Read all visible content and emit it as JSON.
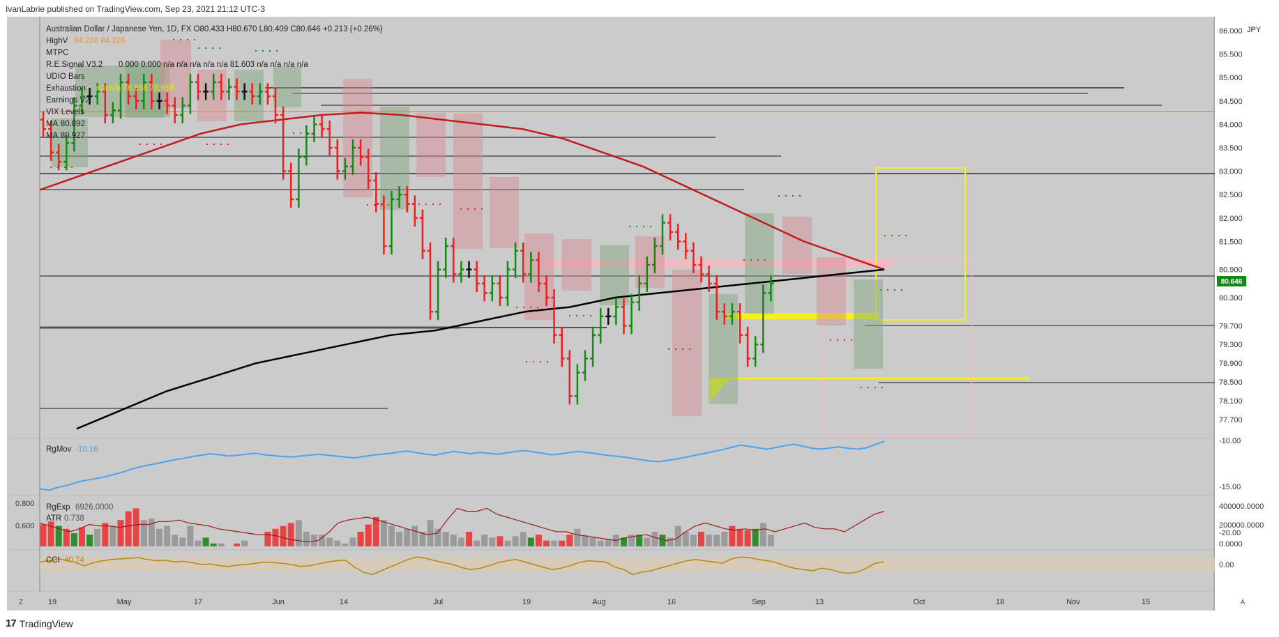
{
  "header": {
    "publisher": "IvanLabrie published on TradingView.com, Sep 23, 2021 21:12 UTC-3"
  },
  "footer": {
    "brand": "TradingView"
  },
  "legend": {
    "symbol": "Australian Dollar / Japanese Yen, 1D, FX",
    "ohlc": "O80.433  H80.670  L80.409  C80.646  +0.213 (+0.26%)",
    "lines": [
      {
        "name": "HighV",
        "values": "84.226  84.226"
      },
      {
        "name": "MTPC",
        "values": ""
      },
      {
        "name": "R.E.Signal V3.2",
        "values": "0.000  0.000  n/a  n/a  n/a  n/a  n/a  81.603  n/a  n/a  n/a  n/a"
      },
      {
        "name": "UDIO Bars",
        "values": ""
      },
      {
        "name": "Exhaustion",
        "values": "n/a  n/a  78.658  78.658"
      },
      {
        "name": "Earnings V2",
        "values": ""
      },
      {
        "name": "VIX Levels",
        "values": ""
      },
      {
        "name": "MA",
        "values": "80.892"
      },
      {
        "name": "MA",
        "values": "80.927"
      }
    ]
  },
  "colors": {
    "bg": "#cbcbcb",
    "up": "#138a13",
    "down": "#f01e1e",
    "neutral": "#111111",
    "ma_fast": "#c01c1c",
    "ma_slow": "#000000",
    "zone_yellow": "#f5f01e",
    "zone_pink": "#f4b9c2",
    "hline": "#555555",
    "orange_line": "#f0922a",
    "rgmov": "#4aa3f0",
    "cci": "#b8860b",
    "rgexp_line": "#9b1a1a",
    "price_tag": "#138a13"
  },
  "chart_data": [
    {
      "type": "ohlc",
      "title": "Australian Dollar / Japanese Yen, 1D, FX",
      "ylabel": "JPY",
      "ylim": [
        77.4,
        86.3
      ],
      "yticks": [
        "86.000",
        "85.500",
        "85.000",
        "84.500",
        "84.000",
        "83.500",
        "83.000",
        "82.500",
        "82.000",
        "81.500",
        "80.900",
        "80.300",
        "79.700",
        "79.300",
        "78.900",
        "78.500",
        "78.100",
        "77.700"
      ],
      "xticks": [
        "19",
        "May",
        "17",
        "Jun",
        "14",
        "Jul",
        "19",
        "Aug",
        "16",
        "Sep",
        "13",
        "Oct",
        "18",
        "Nov",
        "15"
      ],
      "last_price": "80.646",
      "close": [
        83.9,
        83.4,
        83.2,
        83.6,
        84.4,
        84.6,
        84.6,
        84.7,
        84.2,
        84.3,
        84.9,
        84.6,
        84.5,
        84.9,
        84.5,
        84.5,
        84.4,
        84.2,
        84.4,
        84.9,
        84.7,
        84.7,
        84.9,
        84.7,
        84.8,
        84.7,
        84.7,
        84.6,
        84.7,
        84.6,
        84.2,
        83.0,
        82.4,
        83.3,
        83.8,
        84.0,
        83.9,
        83.5,
        83.0,
        83.1,
        83.5,
        83.3,
        82.8,
        82.3,
        81.4,
        82.4,
        82.5,
        82.3,
        82.0,
        81.3,
        80.0,
        80.9,
        81.4,
        80.8,
        80.9,
        80.9,
        80.6,
        80.4,
        80.6,
        80.3,
        80.9,
        81.3,
        80.8,
        81.1,
        80.6,
        80.3,
        79.5,
        79.0,
        78.2,
        78.7,
        79.0,
        79.5,
        79.9,
        79.9,
        80.1,
        79.7,
        80.2,
        80.6,
        81.0,
        81.4,
        81.9,
        81.7,
        81.5,
        81.3,
        81.0,
        80.8,
        80.6,
        80.0,
        79.9,
        80.0,
        79.5,
        79.0,
        79.3,
        80.4,
        80.6
      ]
    },
    {
      "type": "line",
      "name": "MA",
      "values": [
        82.6,
        82.9,
        83.2,
        83.5,
        83.8,
        84.0,
        84.1,
        84.2,
        84.25,
        84.2,
        84.1,
        84.0,
        83.9,
        83.7,
        83.4,
        83.1,
        82.7,
        82.3,
        81.9,
        81.5,
        81.2,
        80.9
      ]
    },
    {
      "type": "line",
      "name": "MA",
      "values": [
        77.5,
        77.9,
        78.3,
        78.6,
        78.9,
        79.1,
        79.3,
        79.5,
        79.6,
        79.8,
        80.0,
        80.1,
        80.3,
        80.4,
        80.5,
        80.6,
        80.7,
        80.8,
        80.9
      ]
    },
    {
      "type": "line",
      "title": "RgMov",
      "value_label": "-10.16",
      "yticks": [
        "-10.00",
        "-15.00",
        "-20.00"
      ],
      "ylim": [
        -21,
        -10
      ],
      "values": [
        -20.5,
        -20.8,
        -20.2,
        -19.8,
        -19.2,
        -18.7,
        -18.4,
        -18.0,
        -17.5,
        -17.0,
        -16.4,
        -15.8,
        -15.4,
        -15.0,
        -14.6,
        -14.2,
        -13.9,
        -13.5,
        -13.2,
        -12.9,
        -13.1,
        -13.4,
        -13.2,
        -13.0,
        -12.8,
        -13.1,
        -13.3,
        -13.5,
        -13.6,
        -13.4,
        -13.2,
        -13.0,
        -13.2,
        -13.4,
        -13.6,
        -13.8,
        -13.5,
        -13.2,
        -13.0,
        -12.8,
        -12.5,
        -12.3,
        -12.7,
        -13.0,
        -13.2,
        -12.8,
        -12.4,
        -12.6,
        -12.9,
        -12.6,
        -12.8,
        -13.0,
        -12.7,
        -12.4,
        -12.2,
        -12.5,
        -12.8,
        -13.1,
        -12.9,
        -12.6,
        -12.4,
        -12.6,
        -12.9,
        -13.2,
        -13.4,
        -13.6,
        -13.9,
        -14.2,
        -14.5,
        -14.6,
        -14.3,
        -14.0,
        -13.6,
        -13.2,
        -12.8,
        -12.4,
        -12.0,
        -11.5,
        -11.0,
        -11.3,
        -11.6,
        -11.9,
        -11.5,
        -11.1,
        -10.8,
        -11.3,
        -11.7,
        -11.9,
        -11.6,
        -11.4,
        -11.7,
        -11.9,
        -11.6,
        -10.9,
        -10.16
      ]
    },
    {
      "type": "bar",
      "title": "RgExp",
      "value_label": "6926.0000",
      "sublabel": "ATR",
      "sublabel_value": "0.738",
      "yticks_left": [
        "0.800",
        "0.600"
      ],
      "yticks_right": [
        "400000.0000",
        "200000.0000",
        "0.0000"
      ],
      "values": [
        0.63,
        0.65,
        0.62,
        0.6,
        0.57,
        0.61,
        0.56,
        0.6,
        0.64,
        0.62,
        0.66,
        0.72,
        0.74,
        0.66,
        0.67,
        0.6,
        0.62,
        0.56,
        0.54,
        0.62,
        0.52,
        0.54,
        0.5,
        0.5,
        0.48,
        0.5,
        0.52,
        0.48,
        0.48,
        0.58,
        0.6,
        0.62,
        0.64,
        0.66,
        0.58,
        0.56,
        0.56,
        0.54,
        0.52,
        0.5,
        0.54,
        0.58,
        0.63,
        0.68,
        0.66,
        0.62,
        0.58,
        0.6,
        0.62,
        0.58,
        0.66,
        0.6,
        0.58,
        0.56,
        0.54,
        0.58,
        0.52,
        0.56,
        0.54,
        0.55,
        0.52,
        0.55,
        0.58,
        0.54,
        0.56,
        0.52,
        0.52,
        0.52,
        0.56,
        0.6,
        0.56,
        0.54,
        0.52,
        0.53,
        0.56,
        0.54,
        0.56,
        0.56,
        0.54,
        0.58,
        0.56,
        0.54,
        0.62,
        0.58,
        0.56,
        0.58,
        0.56,
        0.56,
        0.58,
        0.62,
        0.6,
        0.59,
        0.6,
        0.64,
        0.56
      ],
      "colors": [
        "r",
        "r",
        "g",
        "r",
        "g",
        "r",
        "g",
        "n",
        "r",
        "n",
        "r",
        "r",
        "r",
        "n",
        "n",
        "n",
        "n",
        "n",
        "n",
        "n",
        "n",
        "g",
        "g",
        "n",
        "g",
        "r",
        "n",
        "n",
        "g",
        "r",
        "r",
        "r",
        "r",
        "n",
        "n",
        "n",
        "n",
        "n",
        "n",
        "n",
        "n",
        "r",
        "r",
        "r",
        "n",
        "n",
        "n",
        "n",
        "n",
        "n",
        "n",
        "n",
        "n",
        "n",
        "n",
        "r",
        "n",
        "n",
        "n",
        "r",
        "n",
        "n",
        "n",
        "g",
        "r",
        "r",
        "n",
        "r",
        "r",
        "n",
        "n",
        "n",
        "n",
        "n",
        "n",
        "g",
        "n",
        "g",
        "n",
        "n",
        "g",
        "n",
        "n",
        "n",
        "n",
        "r",
        "n",
        "n",
        "n",
        "r",
        "r",
        "r",
        "g",
        "n",
        "n"
      ],
      "line": [
        0.64,
        0.62,
        0.6,
        0.58,
        0.6,
        0.63,
        0.62,
        0.62,
        0.61,
        0.62,
        0.63,
        0.63,
        0.65,
        0.65,
        0.66,
        0.64,
        0.63,
        0.62,
        0.6,
        0.59,
        0.58,
        0.57,
        0.56,
        0.56,
        0.55,
        0.53,
        0.52,
        0.51,
        0.52,
        0.57,
        0.64,
        0.66,
        0.67,
        0.68,
        0.66,
        0.64,
        0.62,
        0.6,
        0.58,
        0.56,
        0.57,
        0.66,
        0.74,
        0.72,
        0.72,
        0.74,
        0.7,
        0.68,
        0.66,
        0.64,
        0.62,
        0.6,
        0.58,
        0.58,
        0.56,
        0.55,
        0.54,
        0.53,
        0.52,
        0.54,
        0.55,
        0.56,
        0.54,
        0.52,
        0.53,
        0.58,
        0.62,
        0.64,
        0.62,
        0.6,
        0.59,
        0.6,
        0.59,
        0.6,
        0.58,
        0.6,
        0.62,
        0.64,
        0.61,
        0.6,
        0.6,
        0.58,
        0.62,
        0.66,
        0.7,
        0.72
      ]
    },
    {
      "type": "line",
      "title": "CCI",
      "value_label": "40.74",
      "yticks": [
        "0.00"
      ],
      "values": [
        40,
        60,
        90,
        70,
        30,
        -20,
        30,
        60,
        80,
        90,
        100,
        110,
        80,
        60,
        70,
        40,
        50,
        30,
        0,
        10,
        -20,
        -30,
        -10,
        0,
        20,
        40,
        30,
        20,
        0,
        -30,
        -20,
        10,
        40,
        60,
        70,
        -40,
        -120,
        -160,
        -100,
        -40,
        20,
        80,
        120,
        100,
        60,
        30,
        0,
        -50,
        -80,
        -60,
        -20,
        30,
        60,
        80,
        40,
        0,
        -40,
        -80,
        -60,
        -20,
        30,
        60,
        50,
        40,
        -40,
        -80,
        -160,
        -120,
        -100,
        -60,
        -20,
        20,
        60,
        80,
        60,
        40,
        20,
        90,
        120,
        110,
        80,
        60,
        30,
        -20,
        -60,
        -80,
        -100,
        -60,
        -80,
        -120,
        -140,
        -120,
        -60,
        20,
        40.74
      ]
    }
  ]
}
